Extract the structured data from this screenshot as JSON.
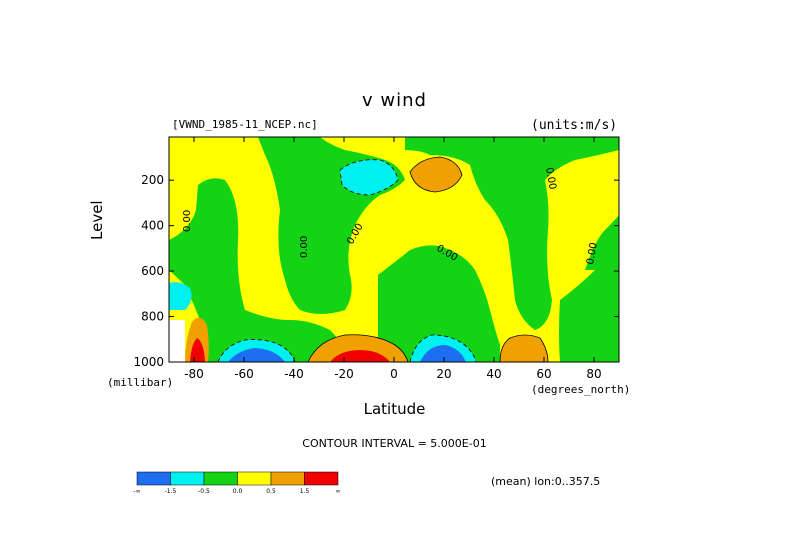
{
  "title": "v wind",
  "file_label": "[VWND_1985-11_NCEP.nc]",
  "units_label": "(units:m/s)",
  "y_unit_label": "(millibar)",
  "x_unit_label": "(degrees_north)",
  "contour_interval_label": "CONTOUR INTERVAL = 5.000E-01",
  "mean_label": "(mean) lon:0..357.5",
  "chart_data": {
    "type": "heatmap",
    "title": "v wind",
    "xlabel": "Latitude",
    "ylabel": "Level",
    "xlim": [
      -90,
      90
    ],
    "ylim": [
      1000,
      10
    ],
    "x_ticks": [
      -80,
      -60,
      -40,
      -20,
      0,
      20,
      40,
      60,
      80
    ],
    "x_tick_labels": [
      "-80",
      "-60",
      "-40",
      "-20",
      "0",
      "20",
      "40",
      "60",
      "80"
    ],
    "y_ticks": [
      200,
      400,
      600,
      800,
      1000
    ],
    "y_tick_labels": [
      "200",
      "400",
      "600",
      "800",
      "1000"
    ],
    "contour_interval": 0.5,
    "contour_labels": [
      "0.00",
      "0.00",
      "0.00",
      "0.00",
      "0.00",
      "0.00"
    ],
    "legend": {
      "levels": [
        "-∞",
        "-1.5",
        "-0.5",
        "0.0",
        "0.5",
        "1.5",
        "∞"
      ],
      "colors": [
        "#1e6ef0",
        "#00f0f0",
        "#14d214",
        "#ffff00",
        "#f0a000",
        "#f00000"
      ]
    },
    "colors": {
      "strong_negative": "#1e6ef0",
      "negative": "#00f0f0",
      "weak_negative": "#14d214",
      "weak_positive": "#ffff00",
      "positive": "#f0a000",
      "strong_positive": "#f00000"
    }
  }
}
